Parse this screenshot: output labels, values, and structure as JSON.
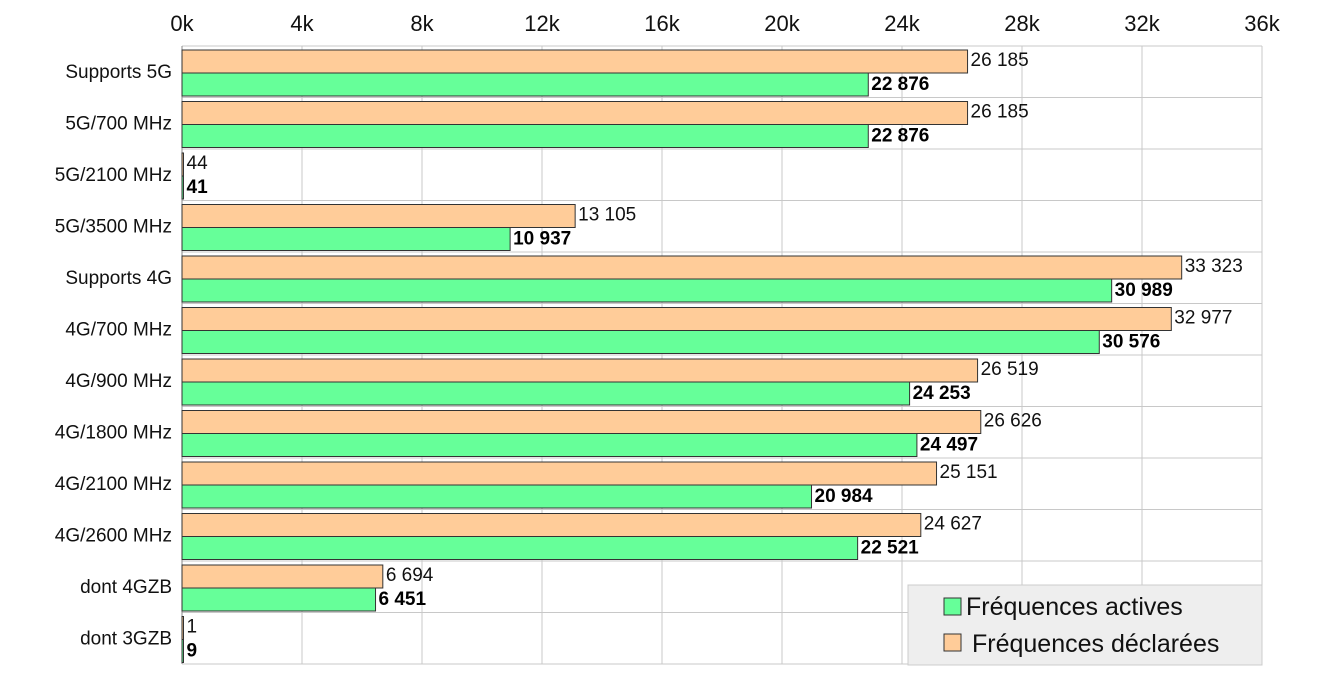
{
  "chart_data": {
    "type": "bar",
    "orientation": "horizontal",
    "categories": [
      "Supports 5G",
      "5G/700 MHz",
      "5G/2100 MHz",
      "5G/3500 MHz",
      "Supports 4G",
      "4G/700 MHz",
      "4G/900 MHz",
      "4G/1800 MHz",
      "4G/2100 MHz",
      "4G/2600 MHz",
      "dont 4GZB",
      "dont 3GZB"
    ],
    "series": [
      {
        "name": "Fréquences déclarées",
        "color": "#ffcc99",
        "values": [
          26185,
          26185,
          44,
          13105,
          33323,
          32977,
          26519,
          26626,
          25151,
          24627,
          6694,
          1
        ],
        "labels": [
          "26 185",
          "26 185",
          "44",
          "13 105",
          "33 323",
          "32 977",
          "26 519",
          "26 626",
          "25 151",
          "24 627",
          "6 694",
          "1"
        ]
      },
      {
        "name": "Fréquences actives",
        "color": "#66ff99",
        "values": [
          22876,
          22876,
          41,
          10937,
          30989,
          30576,
          24253,
          24497,
          20984,
          22521,
          6451,
          9
        ],
        "labels": [
          "22 876",
          "22 876",
          "41",
          "10 937",
          "30 989",
          "30 576",
          "24 253",
          "24 497",
          "20 984",
          "22 521",
          "6 451",
          "9"
        ]
      }
    ],
    "xlim": [
      0,
      36000
    ],
    "xticks": [
      0,
      4000,
      8000,
      12000,
      16000,
      20000,
      24000,
      28000,
      32000,
      36000
    ],
    "xtick_labels": [
      "0k",
      "4k",
      "8k",
      "12k",
      "16k",
      "20k",
      "24k",
      "28k",
      "32k",
      "36k"
    ],
    "x_axis_position": "top",
    "grid": true,
    "legend": {
      "placement": "bottom-right",
      "entries": [
        "Fréquences actives",
        "Fréquences déclarées"
      ]
    }
  }
}
